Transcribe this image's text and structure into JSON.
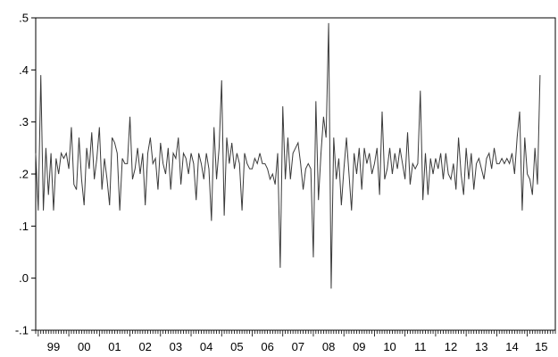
{
  "chart_data": {
    "type": "line",
    "title": "",
    "xlabel": "",
    "ylabel": "",
    "ylim": [
      -0.1,
      0.5
    ],
    "y_ticks": [
      {
        "value": 0.5,
        "label": ".5"
      },
      {
        "value": 0.4,
        "label": ".4"
      },
      {
        "value": 0.3,
        "label": ".3"
      },
      {
        "value": 0.2,
        "label": ".2"
      },
      {
        "value": 0.1,
        "label": ".1"
      },
      {
        "value": 0.0,
        "label": ".0"
      },
      {
        "value": -0.1,
        "label": "-.1"
      }
    ],
    "x_tick_labels": [
      "99",
      "00",
      "01",
      "02",
      "03",
      "04",
      "05",
      "06",
      "07",
      "08",
      "09",
      "10",
      "11",
      "12",
      "13",
      "14",
      "15"
    ],
    "x_range": [
      "1998-12",
      "2015-12"
    ],
    "grid": false,
    "legend": "none",
    "line_color": "#3a3a3a",
    "series": [
      {
        "x_start": "1998-12",
        "frequency": "monthly",
        "values": [
          0.24,
          0.13,
          0.39,
          0.13,
          0.25,
          0.16,
          0.24,
          0.13,
          0.23,
          0.2,
          0.24,
          0.23,
          0.24,
          0.21,
          0.29,
          0.18,
          0.17,
          0.27,
          0.19,
          0.14,
          0.25,
          0.21,
          0.28,
          0.19,
          0.23,
          0.29,
          0.17,
          0.23,
          0.19,
          0.14,
          0.27,
          0.26,
          0.24,
          0.13,
          0.23,
          0.22,
          0.22,
          0.31,
          0.19,
          0.21,
          0.25,
          0.2,
          0.24,
          0.14,
          0.24,
          0.27,
          0.22,
          0.23,
          0.17,
          0.26,
          0.22,
          0.2,
          0.25,
          0.17,
          0.24,
          0.23,
          0.27,
          0.18,
          0.24,
          0.23,
          0.2,
          0.24,
          0.22,
          0.15,
          0.24,
          0.22,
          0.19,
          0.24,
          0.21,
          0.11,
          0.29,
          0.19,
          0.25,
          0.38,
          0.12,
          0.27,
          0.22,
          0.26,
          0.21,
          0.24,
          0.22,
          0.13,
          0.24,
          0.22,
          0.21,
          0.21,
          0.23,
          0.22,
          0.24,
          0.22,
          0.22,
          0.21,
          0.19,
          0.2,
          0.18,
          0.24,
          0.02,
          0.33,
          0.19,
          0.27,
          0.19,
          0.24,
          0.25,
          0.26,
          0.22,
          0.17,
          0.21,
          0.22,
          0.21,
          0.04,
          0.34,
          0.15,
          0.24,
          0.31,
          0.27,
          0.49,
          -0.02,
          0.27,
          0.19,
          0.23,
          0.14,
          0.21,
          0.27,
          0.2,
          0.13,
          0.24,
          0.2,
          0.25,
          0.17,
          0.25,
          0.22,
          0.24,
          0.2,
          0.22,
          0.25,
          0.16,
          0.32,
          0.19,
          0.21,
          0.25,
          0.2,
          0.24,
          0.21,
          0.25,
          0.22,
          0.19,
          0.28,
          0.18,
          0.22,
          0.21,
          0.22,
          0.36,
          0.15,
          0.24,
          0.16,
          0.23,
          0.2,
          0.23,
          0.21,
          0.24,
          0.19,
          0.24,
          0.2,
          0.19,
          0.22,
          0.17,
          0.27,
          0.2,
          0.16,
          0.25,
          0.19,
          0.24,
          0.17,
          0.22,
          0.23,
          0.21,
          0.19,
          0.23,
          0.24,
          0.21,
          0.25,
          0.22,
          0.22,
          0.23,
          0.22,
          0.23,
          0.22,
          0.24,
          0.2,
          0.27,
          0.32,
          0.13,
          0.27,
          0.2,
          0.19,
          0.16,
          0.25,
          0.18,
          0.39
        ]
      }
    ]
  }
}
